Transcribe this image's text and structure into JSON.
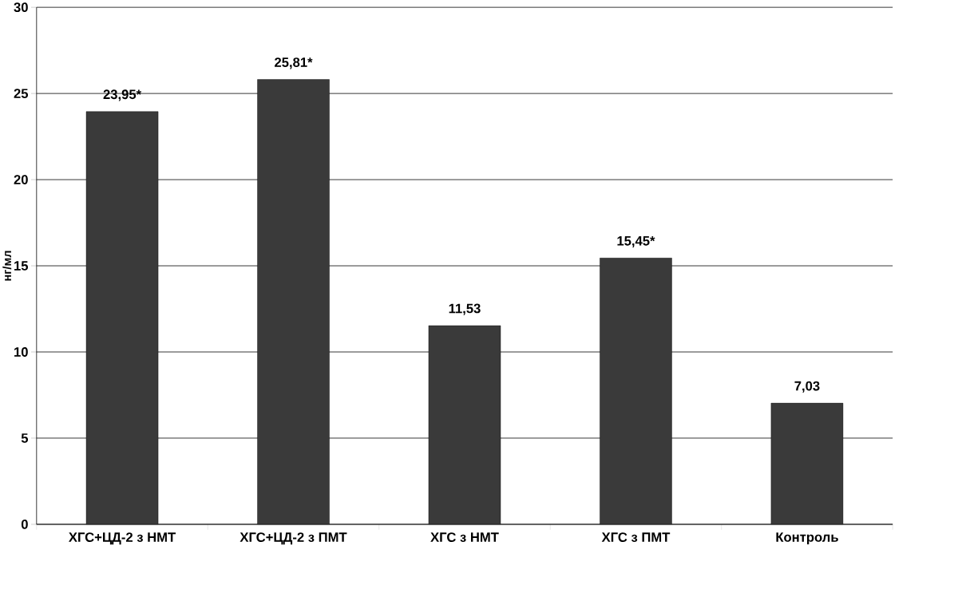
{
  "chart_data": {
    "type": "bar",
    "ylabel": "нг/мл",
    "categories": [
      "ХГС+ЦД-2 з НМТ",
      "ХГС+ЦД-2 з ПМТ",
      "ХГС з НМТ",
      "ХГС з ПМТ",
      "Контроль"
    ],
    "values": [
      23.95,
      25.81,
      11.53,
      15.45,
      7.03
    ],
    "value_labels": [
      "23,95*",
      "25,81*",
      "11,53",
      "15,45*",
      "7,03"
    ],
    "color": "#3a3a3a",
    "ylim": [
      0,
      30
    ],
    "yticks": [
      0,
      5,
      10,
      15,
      20,
      25,
      30
    ],
    "grid": "y"
  }
}
